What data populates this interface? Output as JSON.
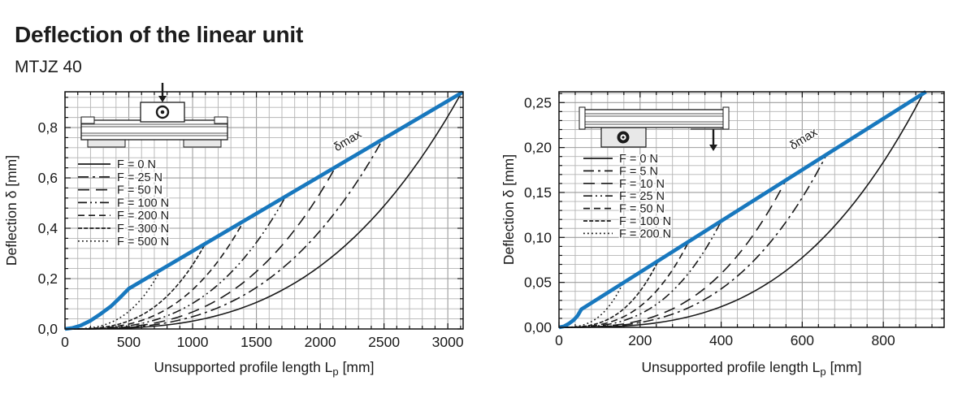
{
  "page": {
    "title": "Deflection of the linear unit",
    "subtitle": "MTJZ 40"
  },
  "colors": {
    "accent_blue": "#1878be",
    "curve_black": "#1a1a1a",
    "grid_minor": "#b4b4b4",
    "grid_major": "#9c9c9c",
    "plot_border": "#111111",
    "diagram_fill": "#e8e8e8"
  },
  "chart_data": [
    {
      "id": "left",
      "type": "line",
      "diagram_icon": "center-load-diagram-icon",
      "xlabel_main": "Unsupported profile length L",
      "xlabel_sub": "p",
      "xlabel_unit": " [mm]",
      "ylabel": "Deflection δ [mm]",
      "xlim": [
        0,
        3120
      ],
      "ylim": [
        0,
        0.942
      ],
      "xtick_values": [
        0,
        500,
        1000,
        1500,
        2000,
        2500,
        3000
      ],
      "xtick_labels": [
        "0",
        "500",
        "1000",
        "1500",
        "2000",
        "2500",
        "3000"
      ],
      "ytick_values": [
        0,
        0.2,
        0.4,
        0.6,
        0.8
      ],
      "ytick_labels": [
        "0,0",
        "0,2",
        "0,4",
        "0,6",
        "0,8"
      ],
      "x_minor_step": 100,
      "y_minor_step": 0.04,
      "grid": true,
      "legend_position": "upper-left-inside",
      "series": [
        {
          "name": "F = 0 N",
          "dash": "solid",
          "end_x": 3105,
          "end_y": 0.936
        },
        {
          "name": "F = 25 N",
          "dash": "dashdot",
          "end_x": 2490,
          "end_y": 0.753
        },
        {
          "name": "F = 50 N",
          "dash": "longdash",
          "end_x": 2120,
          "end_y": 0.643
        },
        {
          "name": "F = 100 N",
          "dash": "dashdotdot",
          "end_x": 1730,
          "end_y": 0.527
        },
        {
          "name": "F = 200 N",
          "dash": "dash",
          "end_x": 1400,
          "end_y": 0.428
        },
        {
          "name": "F = 300 N",
          "dash": "dense",
          "end_x": 1100,
          "end_y": 0.339
        },
        {
          "name": "F = 500 N",
          "dash": "dot",
          "end_x": 750,
          "end_y": 0.235
        }
      ],
      "delta_max": {
        "label": "δmax",
        "points": [
          [
            0,
            0
          ],
          [
            60,
            0.004
          ],
          [
            120,
            0.013
          ],
          [
            200,
            0.033
          ],
          [
            280,
            0.06
          ],
          [
            360,
            0.09
          ],
          [
            430,
            0.124
          ],
          [
            500,
            0.16
          ],
          [
            3115,
            0.94
          ]
        ],
        "label_at": [
          2230,
          0.735
        ],
        "label_angle": -31
      }
    },
    {
      "id": "right",
      "type": "line",
      "diagram_icon": "cantilever-load-diagram-icon",
      "xlabel_main": "Unsupported profile length L",
      "xlabel_sub": "p",
      "xlabel_unit": " [mm]",
      "ylabel": "Deflection δ [mm]",
      "xlim": [
        0,
        950
      ],
      "ylim": [
        0,
        0.262
      ],
      "xtick_values": [
        0,
        200,
        400,
        600,
        800
      ],
      "xtick_labels": [
        "0",
        "200",
        "400",
        "600",
        "800"
      ],
      "ytick_values": [
        0,
        0.05,
        0.1,
        0.15,
        0.2,
        0.25
      ],
      "ytick_labels": [
        "0,00",
        "0,05",
        "0,10",
        "0,15",
        "0,20",
        "0,25"
      ],
      "x_minor_step": 40,
      "y_minor_step": 0.01,
      "grid": true,
      "legend_position": "upper-left-inside",
      "series": [
        {
          "name": "F = 0 N",
          "dash": "solid",
          "end_x": 897,
          "end_y": 0.259
        },
        {
          "name": "F = 5 N",
          "dash": "dashdot",
          "end_x": 660,
          "end_y": 0.192
        },
        {
          "name": "F = 10 N",
          "dash": "longdash",
          "end_x": 560,
          "end_y": 0.164
        },
        {
          "name": "F = 25 N",
          "dash": "dashdotdot",
          "end_x": 400,
          "end_y": 0.118
        },
        {
          "name": "F = 50 N",
          "dash": "dash",
          "end_x": 320,
          "end_y": 0.0955
        },
        {
          "name": "F = 100 N",
          "dash": "dense",
          "end_x": 245,
          "end_y": 0.0741
        },
        {
          "name": "F = 200 N",
          "dash": "dot",
          "end_x": 158,
          "end_y": 0.0494
        }
      ],
      "delta_max": {
        "label": "δmax",
        "points": [
          [
            0,
            0
          ],
          [
            12,
            0.001
          ],
          [
            24,
            0.004
          ],
          [
            36,
            0.008
          ],
          [
            46,
            0.013
          ],
          [
            55,
            0.02
          ],
          [
            905,
            0.262
          ]
        ],
        "label_at": [
          608,
          0.206
        ],
        "label_angle": -32
      }
    }
  ]
}
